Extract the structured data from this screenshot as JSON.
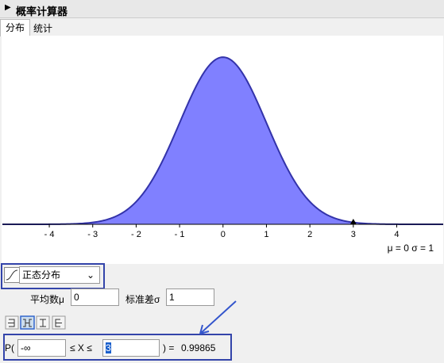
{
  "window": {
    "title": "概率计算器"
  },
  "tabs": [
    "分布",
    "统计"
  ],
  "plot": {
    "type": "line",
    "xlim": [
      -5.08,
      5.07
    ],
    "ylim": [
      0,
      0.42
    ],
    "xticks": [
      {
        "value": -4,
        "label": "- 4"
      },
      {
        "value": -3,
        "label": "- 3"
      },
      {
        "value": -2,
        "label": "- 2"
      },
      {
        "value": -1,
        "label": "- 1"
      },
      0,
      1,
      2,
      3,
      4
    ],
    "fill_color": "#8080ff",
    "line_color": "#3333aa",
    "params_label": "μ = 0   σ = 1"
  },
  "controls": {
    "distribution": "正态分布",
    "mean_label": "平均数μ",
    "mean": 0,
    "sd_label": "标准差σ",
    "sd": 1,
    "p_open": "P(",
    "lower": "-∞",
    "between": "≤ X ≤",
    "upper": 3,
    "p_close": ") =",
    "result": 0.99865
  }
}
